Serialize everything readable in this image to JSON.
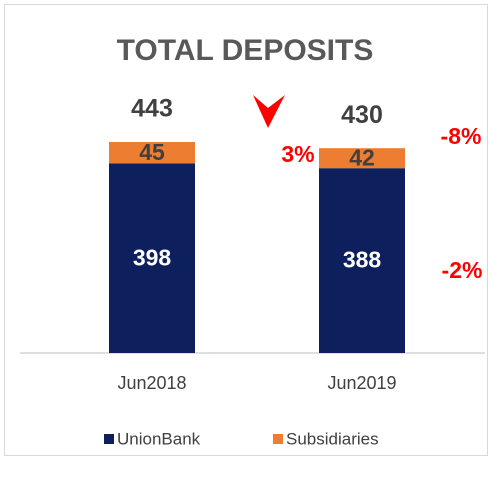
{
  "chart_data": {
    "type": "stacked-bar",
    "title": "TOTAL DEPOSITS",
    "categories": [
      "Jun2018",
      "Jun2019"
    ],
    "series": [
      {
        "name": "UnionBank",
        "color": "#0d1f5c",
        "values": [
          398,
          388
        ]
      },
      {
        "name": "Subsidiaries",
        "color": "#ed7d31",
        "values": [
          45,
          42
        ]
      }
    ],
    "totals": [
      443,
      430
    ],
    "annotations": [
      "3%",
      "-8%",
      "-2%"
    ],
    "legend": "bottom"
  }
}
